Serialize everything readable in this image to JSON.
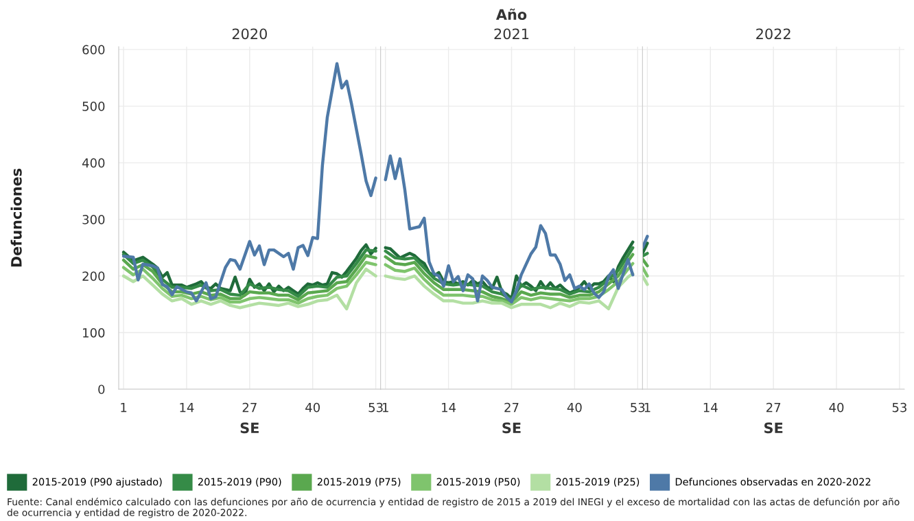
{
  "chart_data": [
    {
      "type": "line",
      "title": "2020",
      "ylabel": "Defunciones",
      "xlabel": "SE",
      "xlim": [
        0,
        54
      ],
      "xticks": [
        1,
        14,
        27,
        40,
        53
      ],
      "ylim": [
        0,
        605
      ],
      "yticks": [
        0,
        100,
        200,
        300,
        400,
        500,
        600
      ],
      "grid": true,
      "legend": "bottom",
      "line_style": "solid",
      "annotations": [
        "Año",
        "Fuente: Canal endémico calculado con las defunciones por año de ocurrencia y entidad de registro de 2015 a 2019 del INEGI y el exceso de mortalidad con las actas de defunción por año de ocurrencia y entidad de registro de 2020-2022."
      ],
      "series": [
        {
          "name": "2015-2019 (P90 ajustado)",
          "color": "#1f6b3a",
          "x": [
            1,
            3,
            5,
            7,
            8,
            9,
            10,
            11,
            13,
            14,
            16,
            17,
            18,
            19,
            20,
            21,
            23,
            24,
            25,
            26,
            27,
            28,
            29,
            30,
            31,
            32,
            33,
            34,
            35,
            36,
            37,
            38,
            39,
            40,
            41,
            42,
            43,
            44,
            45,
            46,
            47,
            49,
            50,
            51,
            52,
            53
          ],
          "values": [
            242,
            227,
            233,
            221,
            214,
            198,
            206,
            184,
            184,
            180,
            186,
            190,
            180,
            178,
            186,
            178,
            174,
            198,
            172,
            166,
            194,
            180,
            186,
            174,
            186,
            172,
            182,
            174,
            180,
            174,
            168,
            178,
            186,
            184,
            188,
            184,
            186,
            206,
            204,
            198,
            208,
            231,
            245,
            255,
            239,
            249
          ]
        },
        {
          "name": "2015-2019 (P90)",
          "color": "#358b47",
          "x": [
            1,
            3,
            5,
            7,
            9,
            11,
            13,
            15,
            17,
            19,
            21,
            23,
            25,
            27,
            29,
            31,
            33,
            35,
            37,
            39,
            41,
            43,
            45,
            47,
            49,
            51,
            53
          ],
          "values": [
            238,
            222,
            228,
            216,
            194,
            180,
            180,
            178,
            184,
            174,
            176,
            168,
            166,
            186,
            178,
            180,
            176,
            174,
            164,
            180,
            182,
            180,
            198,
            200,
            222,
            246,
            244
          ]
        },
        {
          "name": "2015-2019 (P75)",
          "color": "#5aa84f",
          "x": [
            1,
            3,
            5,
            7,
            9,
            11,
            13,
            15,
            17,
            19,
            21,
            23,
            25,
            27,
            29,
            31,
            33,
            35,
            37,
            39,
            41,
            43,
            45,
            47,
            49,
            51,
            53
          ],
          "values": [
            228,
            212,
            220,
            208,
            186,
            172,
            172,
            168,
            172,
            166,
            168,
            160,
            160,
            172,
            170,
            170,
            166,
            166,
            158,
            170,
            172,
            174,
            188,
            190,
            212,
            236,
            232
          ]
        },
        {
          "name": "2015-2019 (P50)",
          "color": "#7fc46d",
          "x": [
            1,
            3,
            5,
            7,
            9,
            11,
            13,
            15,
            17,
            19,
            21,
            23,
            25,
            27,
            29,
            31,
            33,
            35,
            37,
            39,
            41,
            43,
            45,
            47,
            49,
            51,
            53
          ],
          "values": [
            215,
            202,
            212,
            196,
            178,
            164,
            166,
            160,
            164,
            158,
            162,
            154,
            154,
            160,
            162,
            160,
            158,
            158,
            152,
            160,
            164,
            166,
            178,
            182,
            202,
            224,
            220
          ]
        },
        {
          "name": "2015-2019 (P25)",
          "color": "#b3dfa3",
          "x": [
            1,
            3,
            5,
            7,
            9,
            11,
            13,
            15,
            17,
            19,
            21,
            23,
            25,
            27,
            29,
            31,
            33,
            35,
            37,
            39,
            41,
            43,
            45,
            47,
            49,
            51,
            53
          ],
          "values": [
            200,
            190,
            200,
            184,
            168,
            156,
            160,
            150,
            156,
            150,
            156,
            148,
            144,
            148,
            152,
            150,
            148,
            152,
            146,
            150,
            156,
            158,
            166,
            142,
            188,
            212,
            200
          ]
        },
        {
          "name": "Defunciones observadas en 2020-2022",
          "color": "#4e79a7",
          "x": [
            1,
            3,
            4,
            5,
            7,
            8,
            9,
            10,
            11,
            12,
            14,
            15,
            16,
            18,
            19,
            20,
            22,
            23,
            24,
            25,
            27,
            28,
            29,
            30,
            31,
            32,
            34,
            35,
            36,
            37,
            38,
            39,
            40,
            41,
            42,
            43,
            45,
            46,
            47,
            48,
            50,
            51,
            52,
            53
          ],
          "values": [
            235,
            233,
            193,
            221,
            218,
            214,
            185,
            181,
            167,
            181,
            172,
            170,
            156,
            188,
            160,
            163,
            215,
            229,
            227,
            212,
            261,
            237,
            253,
            220,
            246,
            246,
            234,
            240,
            212,
            250,
            254,
            236,
            268,
            266,
            395,
            480,
            575,
            532,
            544,
            504,
            415,
            368,
            342,
            373
          ]
        }
      ]
    },
    {
      "type": "line",
      "title": "2021",
      "xlabel": "SE",
      "xlim": [
        0,
        54
      ],
      "xticks": [
        1,
        14,
        27,
        40,
        53
      ],
      "ylim": [
        0,
        605
      ],
      "yticks": [
        0,
        100,
        200,
        300,
        400,
        500,
        600
      ],
      "grid": true,
      "tick_labels": "x",
      "line_style": "solid",
      "series": [
        {
          "color": "#1f6b3a",
          "x": [
            1,
            2,
            3,
            4,
            5,
            6,
            7,
            8,
            9,
            10,
            11,
            12,
            13,
            14,
            15,
            16,
            17,
            18,
            19,
            20,
            21,
            22,
            23,
            24,
            25,
            26,
            27,
            28,
            29,
            30,
            31,
            32,
            33,
            34,
            35,
            36,
            37,
            38,
            39,
            40,
            41,
            42,
            43,
            44,
            45,
            46,
            47,
            48,
            49,
            50,
            51,
            52
          ],
          "values": [
            250,
            248,
            240,
            232,
            236,
            240,
            236,
            228,
            222,
            206,
            200,
            206,
            190,
            188,
            190,
            186,
            190,
            184,
            192,
            186,
            190,
            180,
            178,
            198,
            172,
            168,
            160,
            200,
            182,
            188,
            182,
            174,
            190,
            178,
            188,
            178,
            184,
            176,
            170,
            174,
            180,
            190,
            178,
            186,
            186,
            190,
            200,
            190,
            216,
            232,
            246,
            260
          ]
        },
        {
          "color": "#358b47",
          "x": [
            1,
            3,
            5,
            7,
            9,
            11,
            13,
            15,
            17,
            19,
            21,
            23,
            25,
            27,
            29,
            31,
            33,
            35,
            37,
            39,
            41,
            43,
            45,
            47,
            49,
            51,
            52
          ],
          "values": [
            244,
            232,
            230,
            232,
            214,
            196,
            186,
            184,
            186,
            184,
            182,
            172,
            168,
            158,
            184,
            176,
            180,
            178,
            176,
            168,
            174,
            172,
            180,
            194,
            210,
            236,
            250
          ]
        },
        {
          "color": "#5aa84f",
          "x": [
            1,
            3,
            5,
            7,
            9,
            11,
            13,
            15,
            17,
            19,
            21,
            23,
            25,
            27,
            29,
            31,
            33,
            35,
            37,
            39,
            41,
            43,
            45,
            47,
            49,
            51,
            52
          ],
          "values": [
            234,
            222,
            220,
            224,
            204,
            188,
            176,
            176,
            176,
            174,
            172,
            164,
            160,
            154,
            172,
            166,
            170,
            168,
            168,
            162,
            166,
            166,
            172,
            186,
            200,
            226,
            238
          ]
        },
        {
          "color": "#7fc46d",
          "x": [
            1,
            3,
            5,
            7,
            9,
            11,
            13,
            15,
            17,
            19,
            21,
            23,
            25,
            27,
            29,
            31,
            33,
            35,
            37,
            39,
            41,
            43,
            45,
            47,
            49,
            51,
            52
          ],
          "values": [
            220,
            210,
            208,
            214,
            194,
            178,
            166,
            166,
            166,
            164,
            164,
            158,
            156,
            150,
            162,
            158,
            162,
            160,
            158,
            156,
            160,
            160,
            164,
            176,
            190,
            212,
            222
          ]
        },
        {
          "color": "#b3dfa3",
          "x": [
            1,
            3,
            5,
            7,
            9,
            11,
            13,
            15,
            17,
            19,
            21,
            23,
            25,
            27,
            29,
            31,
            33,
            35,
            37,
            39,
            41,
            43,
            45,
            47,
            49,
            51,
            52
          ],
          "values": [
            200,
            196,
            194,
            200,
            182,
            168,
            156,
            156,
            152,
            152,
            156,
            152,
            152,
            144,
            150,
            150,
            150,
            144,
            152,
            146,
            154,
            152,
            156,
            142,
            180,
            198,
            204
          ]
        },
        {
          "color": "#4e79a7",
          "x": [
            1,
            2,
            3,
            4,
            5,
            6,
            7,
            8,
            9,
            10,
            11,
            12,
            13,
            14,
            15,
            16,
            17,
            18,
            19,
            20,
            21,
            22,
            23,
            25,
            26,
            27,
            28,
            29,
            31,
            32,
            33,
            34,
            35,
            36,
            37,
            38,
            39,
            40,
            41,
            42,
            43,
            44,
            45,
            46,
            47,
            48,
            49,
            51,
            52
          ],
          "values": [
            370,
            412,
            372,
            407,
            352,
            283,
            285,
            287,
            302,
            225,
            204,
            200,
            182,
            218,
            190,
            199,
            174,
            202,
            195,
            156,
            200,
            192,
            180,
            176,
            162,
            154,
            174,
            202,
            239,
            251,
            289,
            275,
            237,
            237,
            221,
            192,
            202,
            178,
            182,
            176,
            186,
            170,
            162,
            172,
            199,
            211,
            178,
            229,
            202
          ]
        }
      ]
    },
    {
      "type": "line",
      "title": "2022",
      "xlabel": "SE",
      "xlim": [
        0,
        54
      ],
      "xticks": [
        1,
        14,
        27,
        40,
        53
      ],
      "ylim": [
        0,
        605
      ],
      "yticks": [
        0,
        100,
        200,
        300,
        400,
        500,
        600
      ],
      "grid": true,
      "tick_labels": "x",
      "line_style": "solid",
      "series": [
        {
          "color": "#1f6b3a",
          "x": [
            0,
            1
          ],
          "values": [
            240,
            258
          ]
        },
        {
          "color": "#358b47",
          "x": [
            0,
            1
          ],
          "values": [
            235,
            240
          ]
        },
        {
          "color": "#5aa84f",
          "x": [
            0,
            1
          ],
          "values": [
            230,
            218
          ]
        },
        {
          "color": "#7fc46d",
          "x": [
            0,
            1
          ],
          "values": [
            215,
            200
          ]
        },
        {
          "color": "#b3dfa3",
          "x": [
            0,
            1
          ],
          "values": [
            200,
            185
          ]
        },
        {
          "color": "#4e79a7",
          "x": [
            0,
            1
          ],
          "values": [
            250,
            270
          ]
        }
      ]
    }
  ]
}
